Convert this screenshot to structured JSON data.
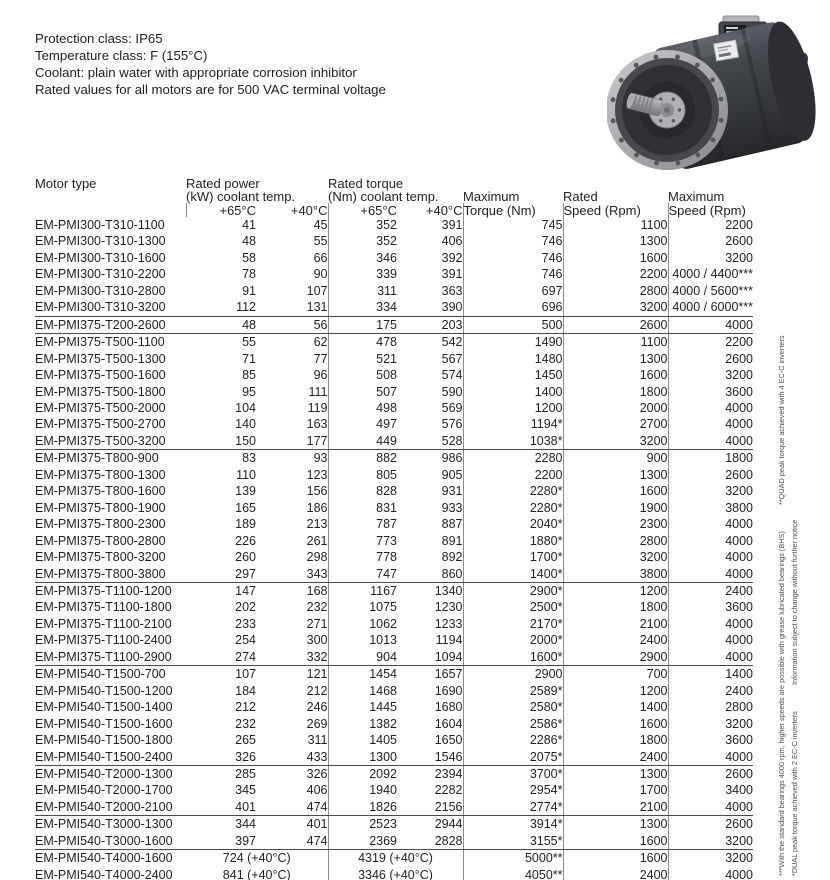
{
  "info": {
    "lines": [
      "Protection class: IP65",
      "Temperature class: F (155°C)",
      "Coolant: plain water with appropriate corrosion inhibitor",
      "Rated values for all motors are for 500 VAC terminal voltage"
    ]
  },
  "product_image": {
    "name": "em-pmi-liquid-cooled-motor-photo",
    "label_red": "#d1322e"
  },
  "table": {
    "headers": {
      "motor_type": "Motor type",
      "power1": "Rated power",
      "power2": "(kW) coolant temp.",
      "torque1": "Rated torque",
      "torque2": "(Nm) coolant temp.",
      "t65": "+65°C",
      "t40": "+40°C",
      "max_torque1": "Maximum",
      "max_torque2": "Torque (Nm)",
      "rated_speed1": "Rated",
      "rated_speed2": "Speed (Rpm)",
      "max_speed1": "Maximum",
      "max_speed2": "Speed (Rpm)"
    },
    "groups": [
      {
        "rows": [
          [
            "EM-PMI300-T310-1100",
            "41",
            "45",
            "352",
            "391",
            "745",
            "1100",
            "2200"
          ],
          [
            "EM-PMI300-T310-1300",
            "48",
            "55",
            "352",
            "406",
            "746",
            "1300",
            "2600"
          ],
          [
            "EM-PMI300-T310-1600",
            "58",
            "66",
            "346",
            "392",
            "746",
            "1600",
            "3200"
          ],
          [
            "EM-PMI300-T310-2200",
            "78",
            "90",
            "339",
            "391",
            "746",
            "2200",
            "4000 / 4400***"
          ],
          [
            "EM-PMI300-T310-2800",
            "91",
            "107",
            "311",
            "363",
            "697",
            "2800",
            "4000 / 5600***"
          ],
          [
            "EM-PMI300-T310-3200",
            "112",
            "131",
            "334",
            "390",
            "696",
            "3200",
            "4000 / 6000***"
          ]
        ]
      },
      {
        "rows": [
          [
            "EM-PMI375-T200-2600",
            "48",
            "56",
            "175",
            "203",
            "500",
            "2600",
            "4000"
          ]
        ]
      },
      {
        "rows": [
          [
            "EM-PMI375-T500-1100",
            "55",
            "62",
            "478",
            "542",
            "1490",
            "1100",
            "2200"
          ],
          [
            "EM-PMI375-T500-1300",
            "71",
            "77",
            "521",
            "567",
            "1480",
            "1300",
            "2600"
          ],
          [
            "EM-PMI375-T500-1600",
            "85",
            "96",
            "508",
            "574",
            "1450",
            "1600",
            "3200"
          ],
          [
            "EM-PMI375-T500-1800",
            "95",
            "111",
            "507",
            "590",
            "1400",
            "1800",
            "3600"
          ],
          [
            "EM-PMI375-T500-2000",
            "104",
            "119",
            "498",
            "569",
            "1200",
            "2000",
            "4000"
          ],
          [
            "EM-PMI375-T500-2700",
            "140",
            "163",
            "497",
            "576",
            "1194*",
            "2700",
            "4000"
          ],
          [
            "EM-PMI375-T500-3200",
            "150",
            "177",
            "449",
            "528",
            "1038*",
            "3200",
            "4000"
          ]
        ]
      },
      {
        "rows": [
          [
            "EM-PMI375-T800-900",
            "83",
            "93",
            "882",
            "986",
            "2280",
            "900",
            "1800"
          ],
          [
            "EM-PMI375-T800-1300",
            "110",
            "123",
            "805",
            "905",
            "2200",
            "1300",
            "2600"
          ],
          [
            "EM-PMI375-T800-1600",
            "139",
            "156",
            "828",
            "931",
            "2280*",
            "1600",
            "3200"
          ],
          [
            "EM-PMI375-T800-1900",
            "165",
            "186",
            "831",
            "933",
            "2280*",
            "1900",
            "3800"
          ],
          [
            "EM-PMI375-T800-2300",
            "189",
            "213",
            "787",
            "887",
            "2040*",
            "2300",
            "4000"
          ],
          [
            "EM-PMI375-T800-2800",
            "226",
            "261",
            "773",
            "891",
            "1880*",
            "2800",
            "4000"
          ],
          [
            "EM-PMI375-T800-3200",
            "260",
            "298",
            "778",
            "892",
            "1700*",
            "3200",
            "4000"
          ],
          [
            "EM-PMI375-T800-3800",
            "297",
            "343",
            "747",
            "860",
            "1400*",
            "3800",
            "4000"
          ]
        ]
      },
      {
        "rows": [
          [
            "EM-PMI375-T1100-1200",
            "147",
            "168",
            "1167",
            "1340",
            "2900*",
            "1200",
            "2400"
          ],
          [
            "EM-PMI375-T1100-1800",
            "202",
            "232",
            "1075",
            "1230",
            "2500*",
            "1800",
            "3600"
          ],
          [
            "EM-PMI375-T1100-2100",
            "233",
            "271",
            "1062",
            "1233",
            "2170*",
            "2100",
            "4000"
          ],
          [
            "EM-PMI375-T1100-2400",
            "254",
            "300",
            "1013",
            "1194",
            "2000*",
            "2400",
            "4000"
          ],
          [
            "EM-PMI375-T1100-2900",
            "274",
            "332",
            "904",
            "1094",
            "1600*",
            "2900",
            "4000"
          ]
        ]
      },
      {
        "rows": [
          [
            "EM-PMI540-T1500-700",
            "107",
            "121",
            "1454",
            "1657",
            "2900",
            "700",
            "1400"
          ],
          [
            "EM-PMI540-T1500-1200",
            "184",
            "212",
            "1468",
            "1690",
            "2589*",
            "1200",
            "2400"
          ],
          [
            "EM-PMI540-T1500-1400",
            "212",
            "246",
            "1445",
            "1680",
            "2580*",
            "1400",
            "2800"
          ],
          [
            "EM-PMI540-T1500-1600",
            "232",
            "269",
            "1382",
            "1604",
            "2586*",
            "1600",
            "3200"
          ],
          [
            "EM-PMI540-T1500-1800",
            "265",
            "311",
            "1405",
            "1650",
            "2286*",
            "1800",
            "3600"
          ],
          [
            "EM-PMI540-T1500-2400",
            "326",
            "433",
            "1300",
            "1546",
            "2075*",
            "2400",
            "4000"
          ]
        ]
      },
      {
        "rows": [
          [
            "EM-PMI540-T2000-1300",
            "285",
            "326",
            "2092",
            "2394",
            "3700*",
            "1300",
            "2600"
          ],
          [
            "EM-PMI540-T2000-1700",
            "345",
            "406",
            "1940",
            "2282",
            "2954*",
            "1700",
            "3400"
          ],
          [
            "EM-PMI540-T2000-2100",
            "401",
            "474",
            "1826",
            "2156",
            "2774*",
            "2100",
            "4000"
          ]
        ]
      },
      {
        "rows": [
          [
            "EM-PMI540-T3000-1300",
            "344",
            "401",
            "2523",
            "2944",
            "3914*",
            "1300",
            "2600"
          ],
          [
            "EM-PMI540-T3000-1600",
            "397",
            "474",
            "2369",
            "2828",
            "3155*",
            "1600",
            "3200"
          ]
        ]
      },
      {
        "rows": [
          [
            "EM-PMI540-T4000-1600",
            "724 (+40°C)",
            null,
            "4319 (+40°C)",
            null,
            "5000**",
            "1600",
            "3200"
          ],
          [
            "EM-PMI540-T4000-2400",
            "841 (+40°C)",
            null,
            "3346 (+40°C)",
            null,
            "4050**",
            "2400",
            "4000"
          ]
        ]
      }
    ]
  },
  "footnotes": {
    "line1": [
      "***With the standard bearings 4000 rpm, higher speeds are possible with grease lubricated bearings (BHS)",
      "**QUAD peak torque achieved with 4 EC-C inverters"
    ],
    "line2": [
      "*DUAL peak torque achieved with 2 EC-C inverters",
      "Information subject to change without further notice"
    ]
  }
}
